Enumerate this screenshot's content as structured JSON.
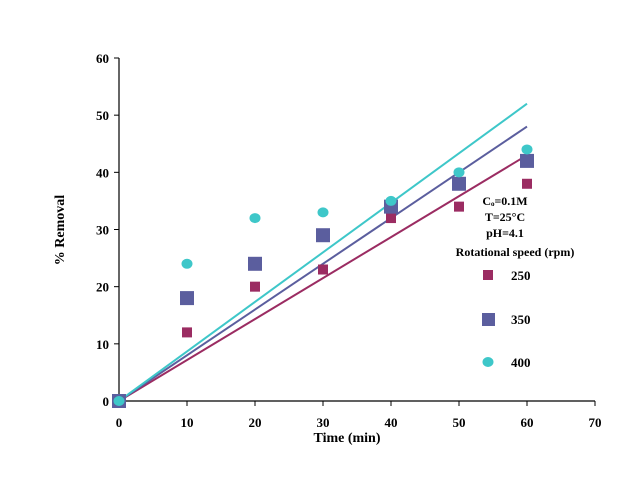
{
  "chart_data": {
    "type": "scatter",
    "title": "",
    "xlabel": "Time (min)",
    "ylabel": "% Removal",
    "xlim": [
      0,
      70
    ],
    "ylim": [
      0,
      60
    ],
    "xticks": [
      0,
      10,
      20,
      30,
      40,
      50,
      60,
      70
    ],
    "yticks": [
      0,
      10,
      20,
      30,
      40,
      50,
      60
    ],
    "grid": false,
    "legend_position": "right",
    "annotations": [
      "Cₒ=0.1M",
      "T=25°C",
      "pH=4.1",
      "Rotational speed (rpm)"
    ],
    "series": [
      {
        "name": "250",
        "marker": "square-small",
        "color": "#9b2c62",
        "x": [
          0,
          10,
          20,
          30,
          40,
          50,
          60
        ],
        "y": [
          0,
          12,
          20,
          23,
          32,
          34,
          38
        ],
        "fit_line": {
          "x": [
            0,
            60
          ],
          "y": [
            0,
            43
          ]
        }
      },
      {
        "name": "350",
        "marker": "square-large",
        "color": "#5b5e9e",
        "x": [
          0,
          10,
          20,
          30,
          40,
          50,
          60
        ],
        "y": [
          0,
          18,
          24,
          29,
          34,
          38,
          42
        ],
        "fit_line": {
          "x": [
            0,
            60
          ],
          "y": [
            0,
            48
          ]
        }
      },
      {
        "name": "400",
        "marker": "circle",
        "color": "#3ec7c9",
        "x": [
          0,
          10,
          20,
          30,
          40,
          50,
          60
        ],
        "y": [
          0,
          24,
          32,
          33,
          35,
          40,
          44
        ],
        "fit_line": {
          "x": [
            0,
            60
          ],
          "y": [
            0,
            52
          ]
        }
      }
    ]
  }
}
